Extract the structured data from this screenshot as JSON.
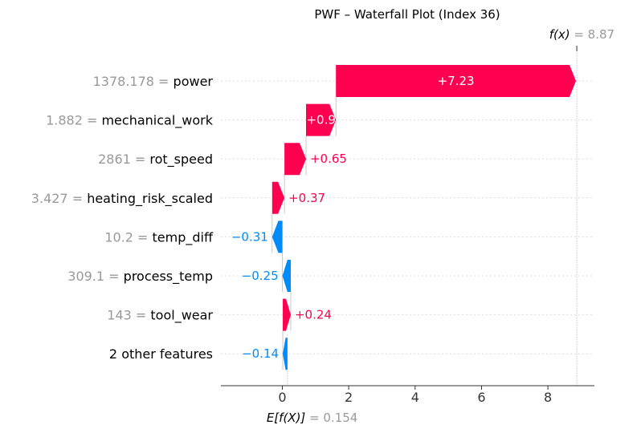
{
  "chart_data": {
    "type": "waterfall",
    "title": "PWF – Waterfall Plot (Index 36)",
    "base_value": 0.154,
    "base_label_prefix": "E[f(X)]",
    "base_label_value": "= 0.154",
    "final_value": 8.87,
    "final_label_prefix": "f(x)",
    "final_label_value": "= 8.87",
    "xlim": [
      -1.85,
      9.4
    ],
    "xticks": [
      0,
      2,
      4,
      6,
      8
    ],
    "xtick_labels": [
      "0",
      "2",
      "4",
      "6",
      "8"
    ],
    "features": [
      {
        "value_text": "1378.178",
        "name": "power",
        "contribution": 7.23,
        "label": "+7.23"
      },
      {
        "value_text": "1.882",
        "name": "mechanical_work",
        "contribution": 0.9,
        "label": "+0.9"
      },
      {
        "value_text": "2861",
        "name": "rot_speed",
        "contribution": 0.65,
        "label": "+0.65"
      },
      {
        "value_text": "3.427",
        "name": "heating_risk_scaled",
        "contribution": 0.37,
        "label": "+0.37"
      },
      {
        "value_text": "10.2",
        "name": "temp_diff",
        "contribution": -0.31,
        "label": "−0.31"
      },
      {
        "value_text": "309.1",
        "name": "process_temp",
        "contribution": -0.25,
        "label": "−0.25"
      },
      {
        "value_text": "143",
        "name": "tool_wear",
        "contribution": 0.24,
        "label": "+0.24"
      },
      {
        "value_text": "",
        "name": "2 other features",
        "contribution": -0.14,
        "label": "−0.14"
      }
    ],
    "colors": {
      "positive": "#ff0051",
      "negative": "#008bfb",
      "feature_value": "#999999",
      "feature_name": "#000000",
      "gridline": "#dddddd"
    }
  }
}
